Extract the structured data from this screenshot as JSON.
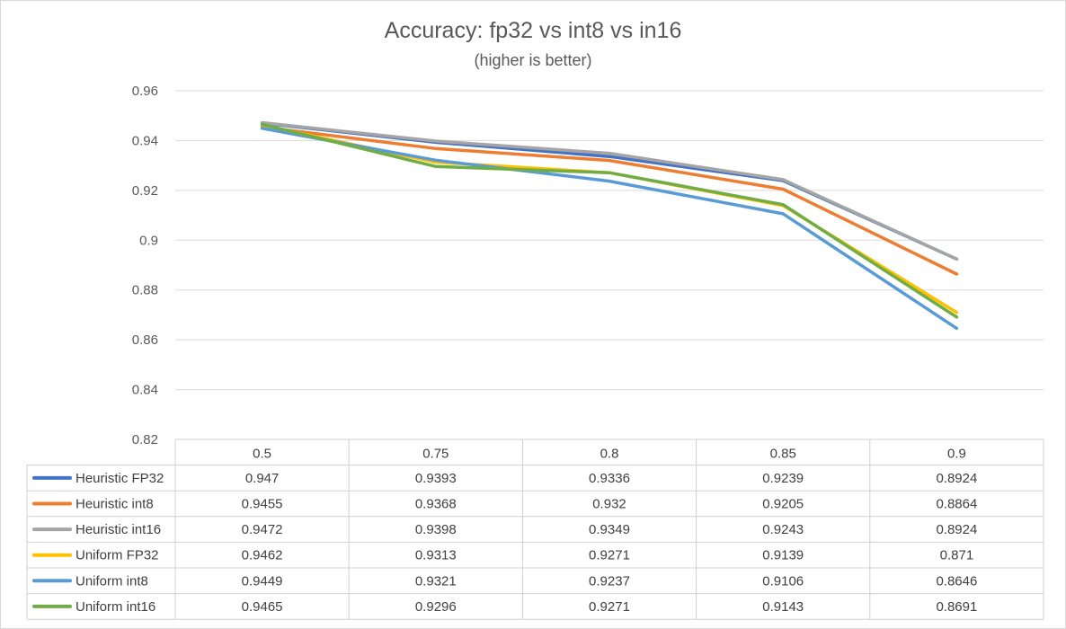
{
  "chart_data": {
    "type": "line",
    "title": "Accuracy: fp32 vs int8 vs in16",
    "subtitle": "(higher is better)",
    "categories": [
      "0.5",
      "0.75",
      "0.8",
      "0.85",
      "0.9"
    ],
    "ylim": [
      0.82,
      0.96
    ],
    "yticks": [
      0.82,
      0.84,
      0.86,
      0.88,
      0.9,
      0.92,
      0.94,
      0.96
    ],
    "ytick_labels": [
      "0.82",
      "0.84",
      "0.86",
      "0.88",
      "0.9",
      "0.92",
      "0.94",
      "0.96"
    ],
    "grid": true,
    "legend_placement": "data-table",
    "series": [
      {
        "name": "Heuristic FP32",
        "color": "#4472c4",
        "values": [
          0.947,
          0.9393,
          0.9336,
          0.9239,
          0.8924
        ],
        "labels": [
          "0.947",
          "0.9393",
          "0.9336",
          "0.9239",
          "0.8924"
        ]
      },
      {
        "name": "Heuristic int8",
        "color": "#ed7d31",
        "values": [
          0.9455,
          0.9368,
          0.932,
          0.9205,
          0.8864
        ],
        "labels": [
          "0.9455",
          "0.9368",
          "0.932",
          "0.9205",
          "0.8864"
        ]
      },
      {
        "name": "Heuristic int16",
        "color": "#a5a5a5",
        "values": [
          0.9472,
          0.9398,
          0.9349,
          0.9243,
          0.8924
        ],
        "labels": [
          "0.9472",
          "0.9398",
          "0.9349",
          "0.9243",
          "0.8924"
        ]
      },
      {
        "name": "Uniform FP32",
        "color": "#ffc000",
        "values": [
          0.9462,
          0.9313,
          0.9271,
          0.9139,
          0.871
        ],
        "labels": [
          "0.9462",
          "0.9313",
          "0.9271",
          "0.9139",
          "0.871"
        ]
      },
      {
        "name": "Uniform int8",
        "color": "#5b9bd5",
        "values": [
          0.9449,
          0.9321,
          0.9237,
          0.9106,
          0.8646
        ],
        "labels": [
          "0.9449",
          "0.9321",
          "0.9237",
          "0.9106",
          "0.8646"
        ]
      },
      {
        "name": "Uniform int16",
        "color": "#70ad47",
        "values": [
          0.9465,
          0.9296,
          0.9271,
          0.9143,
          0.8691
        ],
        "labels": [
          "0.9465",
          "0.9296",
          "0.9271",
          "0.9143",
          "0.8691"
        ]
      }
    ]
  }
}
